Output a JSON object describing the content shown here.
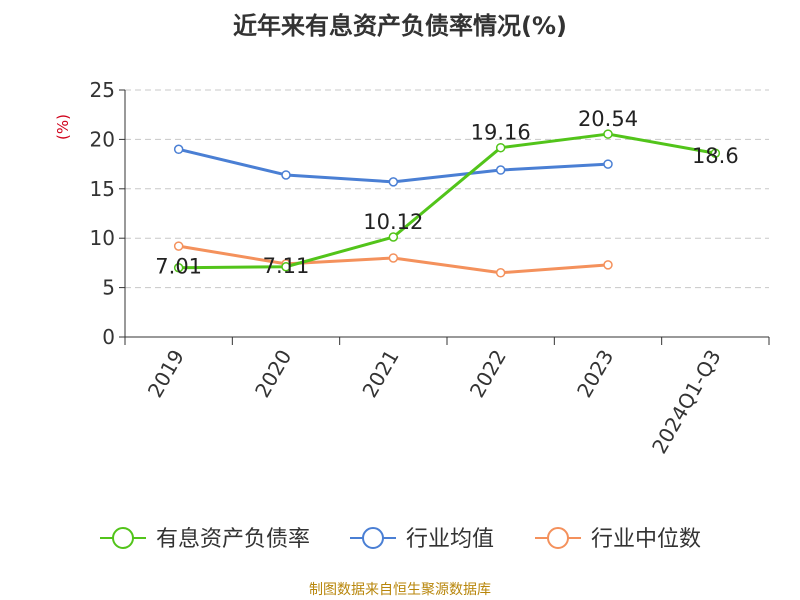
{
  "title": "近年来有息资产负债率情况(%)",
  "source": "制图数据来自恒生聚源数据库",
  "chart_data": {
    "type": "line",
    "title": "近年来有息资产负债率情况(%)",
    "ylabel": "(%)",
    "ylim": [
      0,
      25
    ],
    "yticks": [
      0,
      5,
      10,
      15,
      20,
      25
    ],
    "grid": true,
    "legend_position": "bottom",
    "categories": [
      "2019",
      "2020",
      "2021",
      "2022",
      "2023",
      "2024Q1-Q3"
    ],
    "series": [
      {
        "name": "有息资产负债率",
        "color": "#52c41a",
        "values": [
          7.01,
          7.11,
          10.12,
          19.16,
          20.54,
          18.6
        ],
        "labels": [
          "7.01",
          "7.11",
          "10.12",
          "19.16",
          "20.54",
          "18.6"
        ]
      },
      {
        "name": "行业均值",
        "color": "#4a7fd4",
        "values": [
          19.0,
          16.4,
          15.7,
          16.9,
          17.5,
          null
        ]
      },
      {
        "name": "行业中位数",
        "color": "#f4915c",
        "values": [
          9.2,
          7.4,
          8.0,
          6.5,
          7.3,
          null
        ]
      }
    ]
  }
}
